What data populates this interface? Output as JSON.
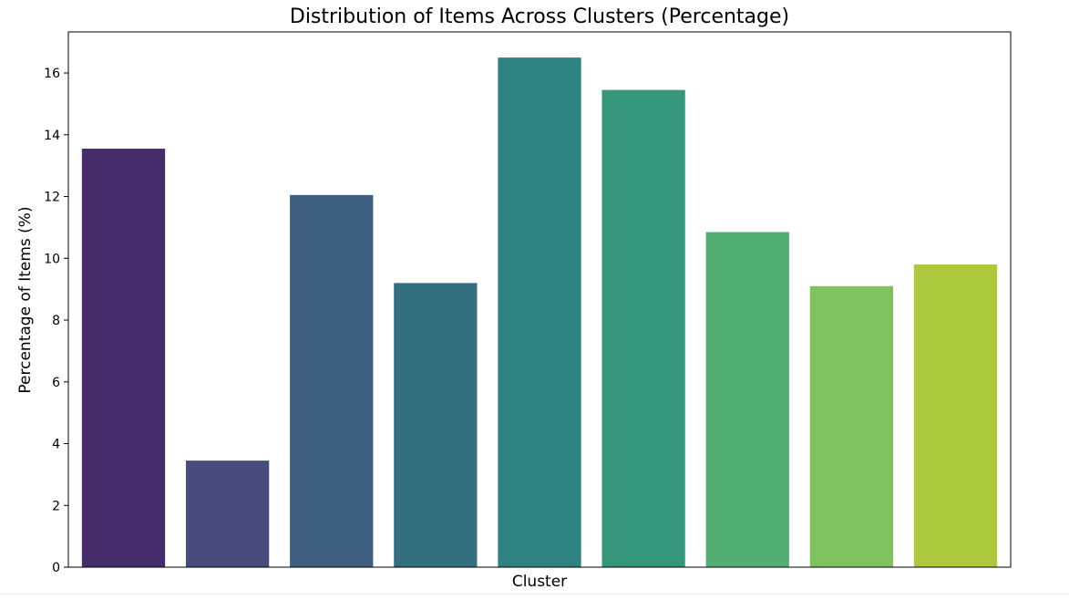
{
  "chart_data": {
    "type": "bar",
    "title": "Distribution of Items Across Clusters (Percentage)",
    "xlabel": "Cluster",
    "ylabel": "Percentage of Items (%)",
    "categories": [
      "",
      "",
      "",
      "",
      "",
      "",
      "",
      "",
      ""
    ],
    "values": [
      13.55,
      3.45,
      12.05,
      9.2,
      16.5,
      15.45,
      10.85,
      9.1,
      9.8
    ],
    "colors": [
      "#472c6b",
      "#484c7d",
      "#3f5f81",
      "#346f7f",
      "#2e8380",
      "#34977c",
      "#53ae74",
      "#7fc25f",
      "#acc83c"
    ],
    "ylim": [
      0,
      17.33
    ],
    "yticks": [
      0,
      2,
      4,
      6,
      8,
      10,
      12,
      14,
      16
    ],
    "grid": false,
    "legend": "none"
  }
}
